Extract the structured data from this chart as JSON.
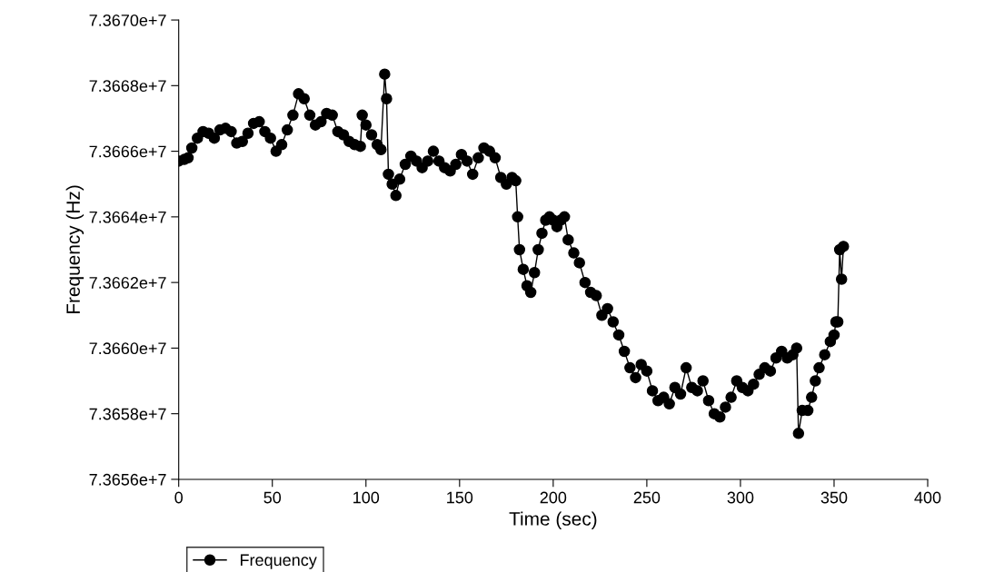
{
  "chart_data": {
    "type": "line",
    "xlabel": "Time (sec)",
    "ylabel": "Frequency (Hz)",
    "xlim": [
      0,
      400
    ],
    "xticks": [
      0,
      50,
      100,
      150,
      200,
      250,
      300,
      350,
      400
    ],
    "ylim": [
      73656000,
      73670000
    ],
    "yticks": [
      {
        "value": 73656000,
        "label": "7.3656e+7"
      },
      {
        "value": 73658000,
        "label": "7.3658e+7"
      },
      {
        "value": 73660000,
        "label": "7.3660e+7"
      },
      {
        "value": 73662000,
        "label": "7.3662e+7"
      },
      {
        "value": 73664000,
        "label": "7.3664e+7"
      },
      {
        "value": 73666000,
        "label": "7.3666e+7"
      },
      {
        "value": 73668000,
        "label": "7.3668e+7"
      },
      {
        "value": 73670000,
        "label": "7.3670e+7"
      }
    ],
    "grid": false,
    "legend": "bottom left",
    "marker": "circle",
    "line_style": "solid",
    "x": [
      0,
      3,
      5,
      7,
      10,
      13,
      16,
      19,
      22,
      25,
      28,
      31,
      34,
      37,
      40,
      43,
      46,
      49,
      52,
      55,
      58,
      61,
      64,
      67,
      70,
      73,
      76,
      79,
      82,
      85,
      88,
      91,
      94,
      97,
      98,
      100,
      103,
      106,
      108,
      110,
      111,
      112,
      114,
      116,
      118,
      121,
      124,
      127,
      130,
      133,
      136,
      139,
      142,
      145,
      148,
      151,
      154,
      157,
      160,
      163,
      166,
      169,
      172,
      175,
      178,
      180,
      181,
      182,
      184,
      186,
      188,
      190,
      192,
      194,
      196,
      198,
      200,
      202,
      204,
      206,
      208,
      211,
      214,
      217,
      220,
      223,
      226,
      229,
      232,
      235,
      238,
      241,
      244,
      247,
      250,
      253,
      256,
      259,
      262,
      265,
      268,
      271,
      274,
      277,
      280,
      283,
      286,
      289,
      292,
      295,
      298,
      301,
      304,
      307,
      310,
      313,
      316,
      319,
      322,
      325,
      328,
      330,
      331,
      333,
      336,
      338,
      340,
      342,
      345,
      348,
      350,
      351,
      352,
      353,
      354,
      355
    ],
    "series": [
      {
        "name": "Frequency",
        "color": "#000000",
        "values": [
          73665700,
          73665750,
          73665800,
          73666100,
          73666400,
          73666600,
          73666550,
          73666400,
          73666650,
          73666700,
          73666600,
          73666250,
          73666300,
          73666550,
          73666850,
          73666900,
          73666600,
          73666400,
          73666000,
          73666200,
          73666650,
          73667100,
          73667750,
          73667600,
          73667100,
          73666800,
          73666900,
          73667150,
          73667100,
          73666600,
          73666500,
          73666300,
          73666200,
          73666150,
          73667100,
          73666800,
          73666500,
          73666200,
          73666050,
          73668350,
          73667600,
          73665300,
          73665000,
          73664650,
          73665150,
          73665600,
          73665850,
          73665700,
          73665500,
          73665700,
          73666000,
          73665700,
          73665500,
          73665400,
          73665600,
          73665900,
          73665700,
          73665300,
          73665800,
          73666100,
          73666000,
          73665800,
          73665200,
          73665000,
          73665200,
          73665100,
          73664000,
          73663000,
          73662400,
          73661900,
          73661700,
          73662300,
          73663000,
          73663500,
          73663900,
          73664000,
          73663900,
          73663700,
          73663900,
          73664000,
          73663300,
          73662900,
          73662600,
          73662000,
          73661700,
          73661600,
          73661000,
          73661200,
          73660800,
          73660400,
          73659900,
          73659400,
          73659100,
          73659500,
          73659300,
          73658700,
          73658400,
          73658500,
          73658300,
          73658800,
          73658600,
          73659400,
          73658800,
          73658700,
          73659000,
          73658400,
          73658000,
          73657900,
          73658200,
          73658500,
          73659000,
          73658800,
          73658700,
          73658900,
          73659200,
          73659400,
          73659300,
          73659700,
          73659900,
          73659700,
          73659800,
          73660000,
          73657400,
          73658100,
          73658100,
          73658500,
          73659000,
          73659400,
          73659800,
          73660200,
          73660400,
          73660800,
          73660800,
          73663000,
          73662100,
          73663100
        ]
      }
    ]
  }
}
